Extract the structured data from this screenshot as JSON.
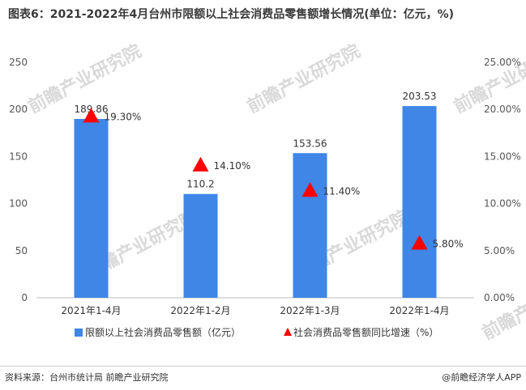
{
  "title": "图表6：2021-2022年4月台州市限额以上社会消费品零售额增长情况(单位：亿元，%)",
  "source": "资料来源：台州市统计局 前瞻产业研究院",
  "brand": "@前瞻经济学人APP",
  "watermark": "前瞻产业研究院",
  "chart_data": {
    "type": "bar",
    "categories": [
      "2021年1-4月",
      "2022年1-2月",
      "2022年1-3月",
      "2022年1-4月"
    ],
    "series": [
      {
        "name": "限额以上社会消费品零售额（亿元）",
        "type": "bar",
        "axis": "left",
        "color": "#3f86e6",
        "values": [
          189.86,
          110.2,
          153.56,
          203.53
        ],
        "labels": [
          "189.86",
          "110.2",
          "153.56",
          "203.53"
        ]
      },
      {
        "name": "社会消费品零售额同比增速（%）",
        "type": "scatter",
        "marker": "triangle",
        "axis": "right",
        "color": "#ff0000",
        "values": [
          19.3,
          14.1,
          11.4,
          5.8
        ],
        "labels": [
          "19.30%",
          "14.10%",
          "11.40%",
          "5.80%"
        ]
      }
    ],
    "y_left": {
      "min": 0,
      "max": 250,
      "ticks": [
        "0",
        "50",
        "100",
        "150",
        "200",
        "250"
      ]
    },
    "y_right": {
      "min": 0,
      "max": 25,
      "ticks": [
        "0.00%",
        "5.00%",
        "10.00%",
        "15.00%",
        "20.00%",
        "25.00%"
      ]
    },
    "legend_position": "bottom",
    "grid": false
  }
}
